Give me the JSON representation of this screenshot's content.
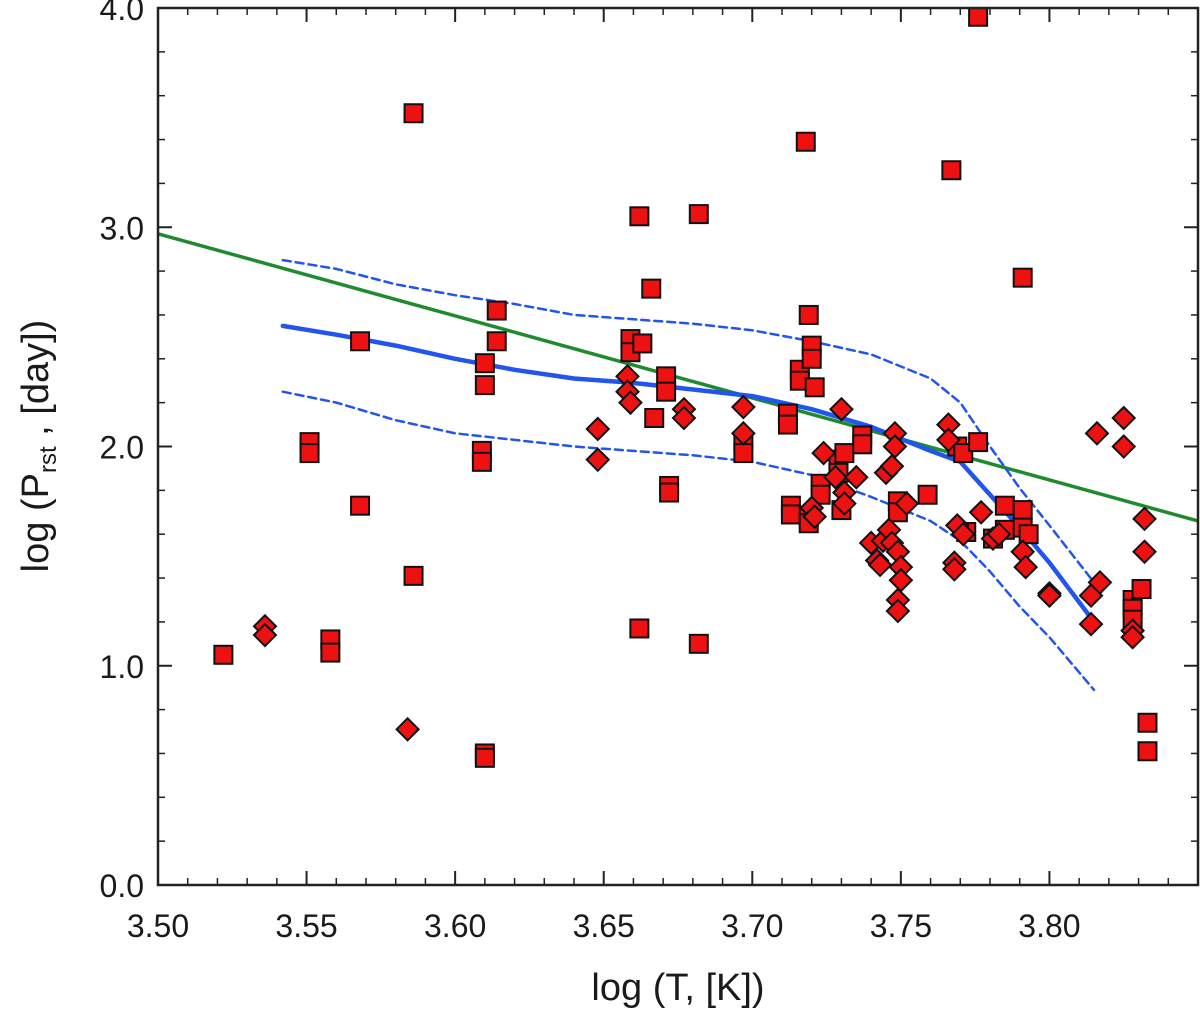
{
  "chart_data": {
    "type": "scatter",
    "xlabel": "log (T, [K])",
    "ylabel": {
      "prefix": "log (P",
      "subscript": "rst",
      "suffix": " , [day])"
    },
    "xlim": [
      3.5,
      3.85
    ],
    "ylim": [
      0.0,
      4.0
    ],
    "xticks": [
      {
        "value": 3.5,
        "label": "3.50"
      },
      {
        "value": 3.55,
        "label": "3.55"
      },
      {
        "value": 3.6,
        "label": "3.60"
      },
      {
        "value": 3.65,
        "label": "3.65"
      },
      {
        "value": 3.7,
        "label": "3.70"
      },
      {
        "value": 3.75,
        "label": "3.75"
      },
      {
        "value": 3.8,
        "label": "3.80"
      }
    ],
    "yticks": [
      {
        "value": 0.0,
        "label": "0.0"
      },
      {
        "value": 1.0,
        "label": "1.0"
      },
      {
        "value": 2.0,
        "label": "2.0"
      },
      {
        "value": 3.0,
        "label": "3.0"
      },
      {
        "value": 4.0,
        "label": "4.0"
      }
    ],
    "colors": {
      "marker_fill": "#ee1111",
      "marker_edge": "#111111",
      "blue": "#2255ee",
      "green": "#1f8a2e",
      "axis": "#222222"
    },
    "series": [
      {
        "name": "squares",
        "marker": "square",
        "points": [
          [
            3.522,
            1.05
          ],
          [
            3.551,
            2.02
          ],
          [
            3.551,
            1.97
          ],
          [
            3.558,
            1.12
          ],
          [
            3.558,
            1.06
          ],
          [
            3.568,
            2.48
          ],
          [
            3.568,
            1.73
          ],
          [
            3.586,
            3.52
          ],
          [
            3.586,
            1.41
          ],
          [
            3.609,
            1.98
          ],
          [
            3.609,
            1.93
          ],
          [
            3.61,
            2.38
          ],
          [
            3.61,
            2.28
          ],
          [
            3.61,
            0.6
          ],
          [
            3.61,
            0.58
          ],
          [
            3.614,
            2.62
          ],
          [
            3.614,
            2.48
          ],
          [
            3.659,
            2.49
          ],
          [
            3.659,
            2.43
          ],
          [
            3.662,
            3.05
          ],
          [
            3.662,
            1.17
          ],
          [
            3.663,
            2.47
          ],
          [
            3.666,
            2.72
          ],
          [
            3.667,
            2.13
          ],
          [
            3.671,
            2.32
          ],
          [
            3.671,
            2.25
          ],
          [
            3.672,
            1.82
          ],
          [
            3.672,
            1.79
          ],
          [
            3.682,
            3.06
          ],
          [
            3.682,
            1.1
          ],
          [
            3.697,
            2.02
          ],
          [
            3.697,
            1.97
          ],
          [
            3.712,
            2.15
          ],
          [
            3.712,
            2.1
          ],
          [
            3.713,
            1.73
          ],
          [
            3.713,
            1.69
          ],
          [
            3.716,
            2.35
          ],
          [
            3.716,
            2.3
          ],
          [
            3.718,
            3.39
          ],
          [
            3.719,
            2.6
          ],
          [
            3.719,
            1.68
          ],
          [
            3.719,
            1.65
          ],
          [
            3.72,
            2.46
          ],
          [
            3.72,
            2.4
          ],
          [
            3.721,
            2.27
          ],
          [
            3.723,
            1.83
          ],
          [
            3.723,
            1.78
          ],
          [
            3.729,
            1.94
          ],
          [
            3.729,
            1.88
          ],
          [
            3.73,
            1.71
          ],
          [
            3.731,
            1.97
          ],
          [
            3.737,
            2.05
          ],
          [
            3.737,
            2.01
          ],
          [
            3.749,
            1.75
          ],
          [
            3.749,
            1.7
          ],
          [
            3.759,
            1.78
          ],
          [
            3.767,
            3.26
          ],
          [
            3.769,
            2.0
          ],
          [
            3.771,
            1.97
          ],
          [
            3.772,
            1.61
          ],
          [
            3.776,
            3.96
          ],
          [
            3.776,
            2.02
          ],
          [
            3.781,
            1.58
          ],
          [
            3.785,
            1.73
          ],
          [
            3.785,
            1.62
          ],
          [
            3.791,
            1.71
          ],
          [
            3.791,
            1.63
          ],
          [
            3.791,
            2.77
          ],
          [
            3.793,
            1.6
          ],
          [
            3.828,
            1.3
          ],
          [
            3.828,
            1.26
          ],
          [
            3.828,
            1.21
          ],
          [
            3.831,
            1.35
          ],
          [
            3.833,
            0.74
          ],
          [
            3.833,
            0.61
          ]
        ]
      },
      {
        "name": "diamonds",
        "marker": "diamond",
        "points": [
          [
            3.536,
            1.18
          ],
          [
            3.536,
            1.14
          ],
          [
            3.584,
            0.71
          ],
          [
            3.648,
            2.08
          ],
          [
            3.648,
            1.94
          ],
          [
            3.658,
            2.32
          ],
          [
            3.658,
            2.25
          ],
          [
            3.659,
            2.2
          ],
          [
            3.677,
            2.17
          ],
          [
            3.677,
            2.13
          ],
          [
            3.697,
            2.18
          ],
          [
            3.697,
            2.06
          ],
          [
            3.72,
            1.72
          ],
          [
            3.721,
            1.68
          ],
          [
            3.724,
            1.97
          ],
          [
            3.728,
            1.86
          ],
          [
            3.73,
            2.17
          ],
          [
            3.731,
            1.79
          ],
          [
            3.731,
            1.74
          ],
          [
            3.735,
            1.86
          ],
          [
            3.74,
            1.56
          ],
          [
            3.742,
            1.48
          ],
          [
            3.743,
            1.46
          ],
          [
            3.744,
            1.57
          ],
          [
            3.745,
            1.88
          ],
          [
            3.746,
            1.62
          ],
          [
            3.747,
            1.56
          ],
          [
            3.747,
            1.91
          ],
          [
            3.748,
            2.06
          ],
          [
            3.748,
            2.0
          ],
          [
            3.749,
            1.52
          ],
          [
            3.749,
            1.3
          ],
          [
            3.749,
            1.25
          ],
          [
            3.75,
            1.45
          ],
          [
            3.75,
            1.39
          ],
          [
            3.752,
            1.74
          ],
          [
            3.766,
            2.1
          ],
          [
            3.766,
            2.03
          ],
          [
            3.768,
            1.47
          ],
          [
            3.768,
            1.44
          ],
          [
            3.769,
            1.64
          ],
          [
            3.771,
            1.6
          ],
          [
            3.777,
            1.7
          ],
          [
            3.781,
            1.58
          ],
          [
            3.783,
            1.6
          ],
          [
            3.791,
            1.52
          ],
          [
            3.792,
            1.45
          ],
          [
            3.8,
            1.33
          ],
          [
            3.8,
            1.32
          ],
          [
            3.814,
            1.19
          ],
          [
            3.814,
            1.32
          ],
          [
            3.817,
            1.38
          ],
          [
            3.816,
            2.06
          ],
          [
            3.825,
            2.13
          ],
          [
            3.825,
            2.0
          ],
          [
            3.828,
            1.16
          ],
          [
            3.828,
            1.13
          ],
          [
            3.832,
            1.67
          ],
          [
            3.832,
            1.52
          ]
        ]
      }
    ],
    "lines": [
      {
        "name": "green-fit",
        "style": "solid",
        "color": "green",
        "x": [
          3.5,
          3.85
        ],
        "y": [
          2.97,
          1.66
        ]
      },
      {
        "name": "blue-mean",
        "style": "solid",
        "color": "blue",
        "x": [
          3.542,
          3.56,
          3.58,
          3.6,
          3.62,
          3.64,
          3.66,
          3.68,
          3.7,
          3.72,
          3.74,
          3.76,
          3.77,
          3.78,
          3.79,
          3.8,
          3.815
        ],
        "y": [
          2.55,
          2.51,
          2.46,
          2.4,
          2.35,
          2.31,
          2.29,
          2.26,
          2.23,
          2.17,
          2.09,
          1.98,
          1.93,
          1.78,
          1.63,
          1.47,
          1.2
        ]
      },
      {
        "name": "blue-upper",
        "style": "dashed",
        "color": "blue",
        "x": [
          3.542,
          3.56,
          3.58,
          3.6,
          3.62,
          3.64,
          3.66,
          3.68,
          3.7,
          3.72,
          3.74,
          3.76,
          3.77,
          3.78,
          3.79,
          3.8,
          3.815
        ],
        "y": [
          2.85,
          2.81,
          2.74,
          2.69,
          2.65,
          2.6,
          2.58,
          2.56,
          2.53,
          2.48,
          2.42,
          2.31,
          2.2,
          2.0,
          1.81,
          1.64,
          1.38
        ]
      },
      {
        "name": "blue-lower",
        "style": "dashed",
        "color": "blue",
        "x": [
          3.542,
          3.56,
          3.58,
          3.6,
          3.62,
          3.64,
          3.66,
          3.68,
          3.7,
          3.72,
          3.74,
          3.76,
          3.77,
          3.78,
          3.79,
          3.8,
          3.815
        ],
        "y": [
          2.25,
          2.2,
          2.12,
          2.06,
          2.03,
          2.0,
          1.98,
          1.96,
          1.93,
          1.87,
          1.77,
          1.66,
          1.57,
          1.43,
          1.27,
          1.13,
          0.89
        ]
      }
    ]
  }
}
